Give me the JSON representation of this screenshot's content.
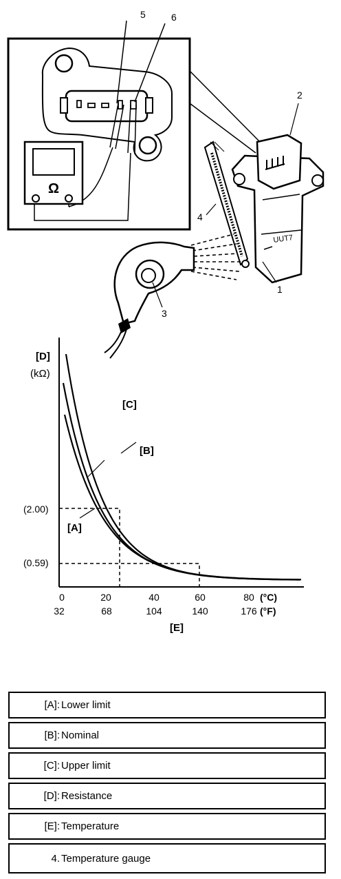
{
  "callouts": [
    "1",
    "2",
    "3",
    "4",
    "5",
    "6"
  ],
  "meter_symbol": "Ω",
  "graph": {
    "y_axis_code": "[D]",
    "y_axis_unit": "(kΩ)",
    "x_axis_code": "[E]",
    "curve_labels": [
      "[C]",
      "[B]",
      "[A]"
    ],
    "ref_values": [
      "(2.00)",
      "(0.59)"
    ],
    "x_ticks_c": [
      "0",
      "20",
      "40",
      "60",
      "80"
    ],
    "x_ticks_f": [
      "32",
      "68",
      "104",
      "140",
      "176"
    ],
    "unit_c": "(°C)",
    "unit_f": "(°F)"
  },
  "legend": [
    {
      "key": "[A]:",
      "value": "Lower limit"
    },
    {
      "key": "[B]:",
      "value": "Nominal"
    },
    {
      "key": "[C]:",
      "value": "Upper limit"
    },
    {
      "key": "[D]:",
      "value": "Resistance"
    },
    {
      "key": "[E]:",
      "value": "Temperature"
    },
    {
      "key": "4.",
      "value": "Temperature gauge"
    }
  ]
}
